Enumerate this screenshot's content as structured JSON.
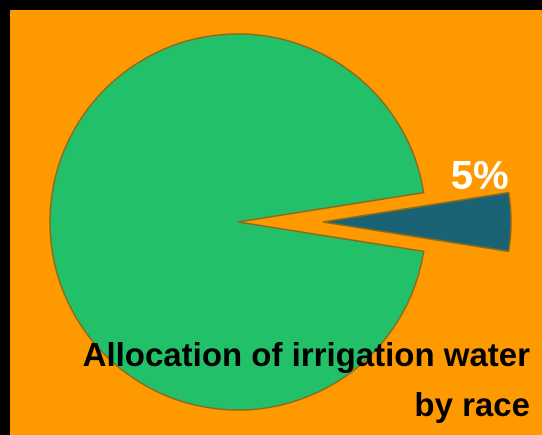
{
  "chart_data": {
    "type": "pie",
    "title": "Allocation of irrigation water by race",
    "values": [
      95,
      5
    ],
    "value_labels": [
      null,
      "5%"
    ],
    "colors": [
      "#22c068",
      "#1a6374"
    ]
  }
}
